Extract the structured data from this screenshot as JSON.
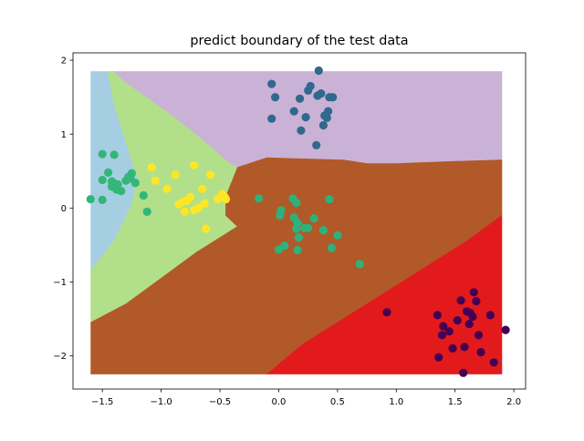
{
  "chart_data": {
    "type": "scatter",
    "title": "predict boundary of the test data",
    "xlabel": "",
    "ylabel": "",
    "xlim": [
      -1.75,
      2.1
    ],
    "ylim": [
      -2.45,
      2.1
    ],
    "xticks": [
      -1.5,
      -1.0,
      -0.5,
      0.0,
      0.5,
      1.0,
      1.5,
      2.0
    ],
    "yticks": [
      -2,
      -1,
      0,
      1,
      2
    ],
    "xtick_labels": [
      "−1.5",
      "−1.0",
      "−0.5",
      "0.0",
      "0.5",
      "1.0",
      "1.5",
      "2.0"
    ],
    "ytick_labels": [
      "−2",
      "−1",
      "0",
      "1",
      "2"
    ],
    "grid": false,
    "legend": "none",
    "decision_regions": {
      "extent": {
        "x": [
          -1.6,
          1.9
        ],
        "y": [
          -2.25,
          1.85
        ]
      },
      "regions": [
        {
          "class": 0,
          "color": "#a6cee3",
          "polygon": [
            [
              -1.6,
              1.85
            ],
            [
              -1.45,
              1.85
            ],
            [
              -1.4,
              1.4
            ],
            [
              -1.3,
              0.9
            ],
            [
              -1.2,
              0.4
            ],
            [
              -1.25,
              0.05
            ],
            [
              -1.4,
              -0.45
            ],
            [
              -1.6,
              -0.85
            ]
          ]
        },
        {
          "class": 1,
          "color": "#b2df8a",
          "polygon": [
            [
              -1.45,
              1.85
            ],
            [
              -1.4,
              1.85
            ],
            [
              -1.3,
              1.7
            ],
            [
              -1.1,
              1.48
            ],
            [
              -0.9,
              1.25
            ],
            [
              -0.7,
              1.0
            ],
            [
              -0.55,
              0.8
            ],
            [
              -0.45,
              0.65
            ],
            [
              -0.35,
              0.55
            ],
            [
              -0.45,
              0.15
            ],
            [
              -0.45,
              -0.1
            ],
            [
              -0.35,
              -0.25
            ],
            [
              -0.7,
              -0.6
            ],
            [
              -1.0,
              -0.95
            ],
            [
              -1.3,
              -1.3
            ],
            [
              -1.6,
              -1.55
            ],
            [
              -1.6,
              -0.85
            ],
            [
              -1.4,
              -0.45
            ],
            [
              -1.25,
              0.05
            ],
            [
              -1.2,
              0.4
            ],
            [
              -1.3,
              0.9
            ],
            [
              -1.4,
              1.4
            ]
          ]
        },
        {
          "class": 2,
          "color": "#cab2d6",
          "polygon": [
            [
              -1.4,
              1.85
            ],
            [
              1.9,
              1.85
            ],
            [
              1.9,
              0.65
            ],
            [
              1.5,
              0.63
            ],
            [
              1.0,
              0.6
            ],
            [
              0.75,
              0.6
            ],
            [
              0.55,
              0.65
            ],
            [
              0.1,
              0.67
            ],
            [
              -0.1,
              0.68
            ],
            [
              -0.35,
              0.55
            ],
            [
              -0.45,
              0.65
            ],
            [
              -0.55,
              0.8
            ],
            [
              -0.7,
              1.0
            ],
            [
              -0.9,
              1.25
            ],
            [
              -1.1,
              1.48
            ],
            [
              -1.3,
              1.7
            ]
          ]
        },
        {
          "class": 3,
          "color": "#b15928",
          "polygon": [
            [
              -0.35,
              0.55
            ],
            [
              -0.1,
              0.68
            ],
            [
              0.1,
              0.67
            ],
            [
              0.55,
              0.65
            ],
            [
              0.75,
              0.6
            ],
            [
              1.0,
              0.6
            ],
            [
              1.5,
              0.63
            ],
            [
              1.9,
              0.65
            ],
            [
              1.9,
              -0.1
            ],
            [
              1.6,
              -0.45
            ],
            [
              1.3,
              -0.75
            ],
            [
              1.0,
              -1.05
            ],
            [
              0.7,
              -1.35
            ],
            [
              0.45,
              -1.6
            ],
            [
              0.2,
              -1.85
            ],
            [
              -0.1,
              -2.25
            ],
            [
              -1.6,
              -2.25
            ],
            [
              -1.6,
              -1.55
            ],
            [
              -1.3,
              -1.3
            ],
            [
              -1.0,
              -0.95
            ],
            [
              -0.7,
              -0.6
            ],
            [
              -0.35,
              -0.25
            ],
            [
              -0.45,
              -0.1
            ],
            [
              -0.45,
              0.15
            ]
          ]
        },
        {
          "class": 4,
          "color": "#e31a1c",
          "polygon": [
            [
              1.9,
              -0.1
            ],
            [
              1.6,
              -0.45
            ],
            [
              1.3,
              -0.75
            ],
            [
              1.0,
              -1.05
            ],
            [
              0.7,
              -1.35
            ],
            [
              0.45,
              -1.6
            ],
            [
              0.2,
              -1.85
            ],
            [
              -0.1,
              -2.25
            ],
            [
              1.9,
              -2.25
            ]
          ]
        }
      ]
    },
    "series": [
      {
        "color": "#34b679",
        "points": [
          [
            -1.6,
            0.12
          ],
          [
            -1.5,
            0.11
          ],
          [
            -1.5,
            0.38
          ],
          [
            -1.5,
            0.73
          ],
          [
            -1.45,
            0.48
          ],
          [
            -1.42,
            0.36
          ],
          [
            -1.42,
            0.29
          ],
          [
            -1.4,
            0.72
          ],
          [
            -1.4,
            0.33
          ],
          [
            -1.38,
            0.25
          ],
          [
            -1.37,
            0.32
          ],
          [
            -1.34,
            0.23
          ],
          [
            -1.3,
            0.37
          ],
          [
            -1.28,
            0.42
          ],
          [
            -1.26,
            0.4
          ],
          [
            -1.25,
            0.47
          ],
          [
            -1.22,
            0.34
          ],
          [
            -1.15,
            0.17
          ],
          [
            -1.12,
            -0.05
          ]
        ]
      },
      {
        "color": "#fde725",
        "points": [
          [
            -1.08,
            0.55
          ],
          [
            -1.05,
            0.37
          ],
          [
            -0.95,
            0.26
          ],
          [
            -0.88,
            0.45
          ],
          [
            -0.85,
            0.05
          ],
          [
            -0.82,
            0.08
          ],
          [
            -0.8,
            -0.05
          ],
          [
            -0.78,
            0.1
          ],
          [
            -0.75,
            0.15
          ],
          [
            -0.72,
            0.58
          ],
          [
            -0.72,
            -0.03
          ],
          [
            -0.68,
            0.0
          ],
          [
            -0.65,
            0.26
          ],
          [
            -0.63,
            0.06
          ],
          [
            -0.62,
            -0.28
          ],
          [
            -0.58,
            0.45
          ],
          [
            -0.52,
            0.12
          ],
          [
            -0.48,
            0.19
          ],
          [
            -0.46,
            0.15
          ],
          [
            -0.45,
            0.12
          ]
        ]
      },
      {
        "color": "#31688e",
        "points": [
          [
            -0.06,
            1.68
          ],
          [
            -0.06,
            1.21
          ],
          [
            -0.03,
            1.5
          ],
          [
            0.13,
            1.31
          ],
          [
            0.18,
            1.48
          ],
          [
            0.19,
            1.05
          ],
          [
            0.23,
            1.23
          ],
          [
            0.25,
            1.59
          ],
          [
            0.27,
            1.65
          ],
          [
            0.32,
            0.85
          ],
          [
            0.33,
            1.52
          ],
          [
            0.34,
            1.86
          ],
          [
            0.36,
            1.55
          ],
          [
            0.38,
            1.12
          ],
          [
            0.39,
            1.25
          ],
          [
            0.41,
            1.22
          ],
          [
            0.42,
            1.31
          ],
          [
            0.43,
            1.5
          ],
          [
            0.46,
            1.5
          ]
        ]
      },
      {
        "color": "#2db27d",
        "points": [
          [
            -0.17,
            0.13
          ],
          [
            0.0,
            -0.56
          ],
          [
            0.01,
            -0.1
          ],
          [
            0.02,
            -0.03
          ],
          [
            0.05,
            -0.51
          ],
          [
            0.12,
            0.13
          ],
          [
            0.13,
            -0.13
          ],
          [
            0.15,
            0.07
          ],
          [
            0.15,
            -0.28
          ],
          [
            0.16,
            -0.2
          ],
          [
            0.16,
            -0.57
          ],
          [
            0.17,
            -0.4
          ],
          [
            0.22,
            -0.27
          ],
          [
            0.25,
            -0.27
          ],
          [
            0.3,
            -0.14
          ],
          [
            0.38,
            -0.3
          ],
          [
            0.43,
            0.12
          ],
          [
            0.45,
            -0.54
          ],
          [
            0.5,
            -0.37
          ],
          [
            0.69,
            -0.76
          ]
        ]
      },
      {
        "color": "#440154",
        "points": [
          [
            0.92,
            -1.41
          ],
          [
            1.35,
            -1.45
          ],
          [
            1.36,
            -2.02
          ],
          [
            1.39,
            -1.72
          ],
          [
            1.4,
            -1.6
          ],
          [
            1.45,
            -1.67
          ],
          [
            1.48,
            -1.9
          ],
          [
            1.52,
            -1.52
          ],
          [
            1.55,
            -1.25
          ],
          [
            1.57,
            -2.23
          ],
          [
            1.58,
            -1.88
          ],
          [
            1.6,
            -1.4
          ],
          [
            1.62,
            -1.57
          ],
          [
            1.63,
            -1.42
          ],
          [
            1.65,
            -1.47
          ],
          [
            1.66,
            -1.14
          ],
          [
            1.68,
            -1.26
          ],
          [
            1.7,
            -1.72
          ],
          [
            1.72,
            -1.95
          ],
          [
            1.8,
            -1.45
          ],
          [
            1.83,
            -2.09
          ],
          [
            1.93,
            -1.65
          ]
        ]
      }
    ]
  }
}
